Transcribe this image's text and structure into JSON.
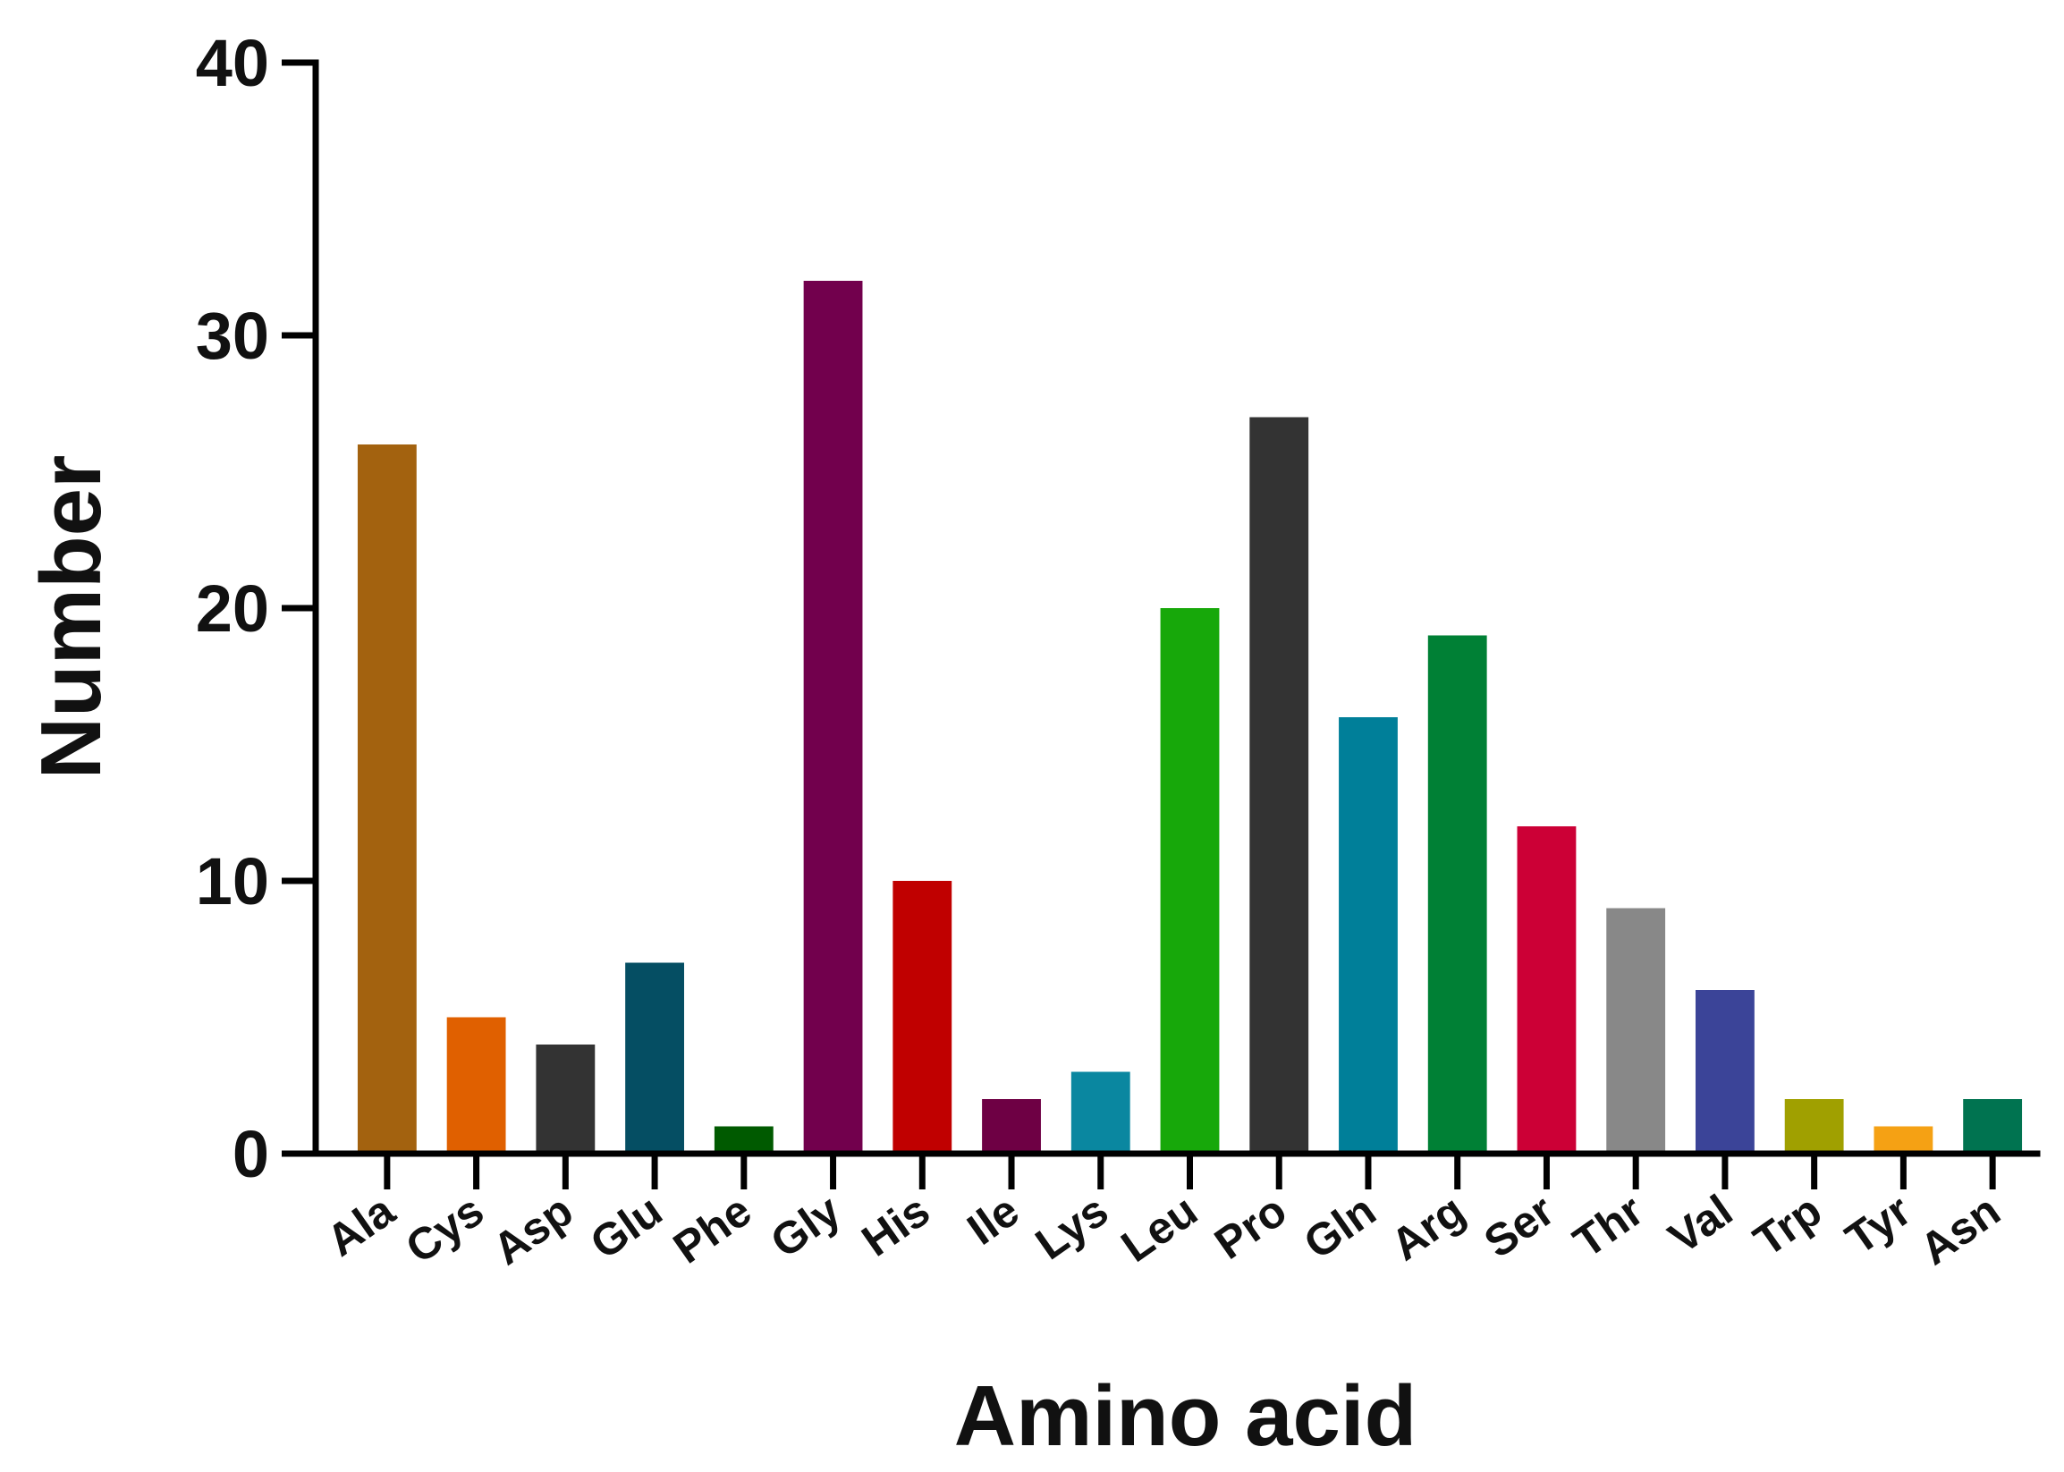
{
  "chart_data": {
    "type": "bar",
    "title": "",
    "xlabel": "Amino acid",
    "ylabel": "Number",
    "ylim": [
      0,
      40
    ],
    "yticks": [
      0,
      10,
      20,
      30,
      40
    ],
    "grid": false,
    "categories": [
      "Ala",
      "Cys",
      "Asp",
      "Glu",
      "Phe",
      "Gly",
      "His",
      "Ile",
      "Lys",
      "Leu",
      "Pro",
      "Gln",
      "Arg",
      "Ser",
      "Thr",
      "Val",
      "Trp",
      "Tyr",
      "Asn"
    ],
    "values": [
      26,
      5,
      4,
      7,
      1,
      32,
      10,
      2,
      3,
      20,
      27,
      16,
      19,
      12,
      9,
      6,
      2,
      1,
      2
    ],
    "colors": [
      "#a3620f",
      "#e06000",
      "#333333",
      "#054e63",
      "#005a00",
      "#72004d",
      "#c00000",
      "#6e0044",
      "#0a87a0",
      "#17a80a",
      "#333333",
      "#007f99",
      "#008035",
      "#cc0036",
      "#888888",
      "#3b4498",
      "#a0a000",
      "#f5a114",
      "#007350"
    ]
  }
}
